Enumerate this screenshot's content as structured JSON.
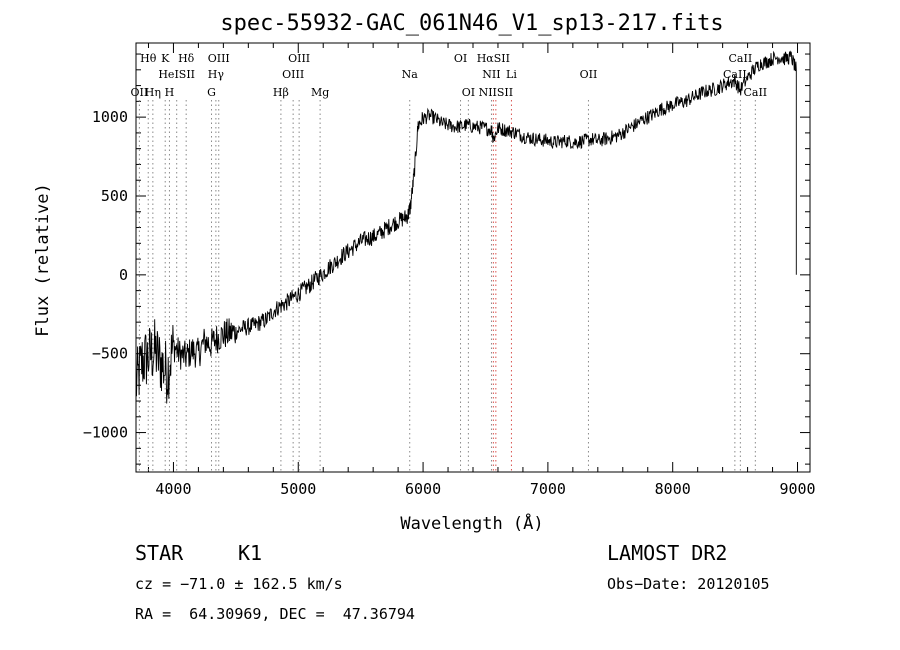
{
  "chart_data": {
    "type": "line",
    "title": "spec-55932-GAC_061N46_V1_sp13-217.fits",
    "xlabel": "Wavelength (Å)",
    "ylabel": "Flux (relative)",
    "xlim": [
      3700,
      9100
    ],
    "ylim": [
      -1250,
      1470
    ],
    "xticks": [
      4000,
      5000,
      6000,
      7000,
      8000,
      9000
    ],
    "yticks": [
      -1000,
      -500,
      0,
      500,
      1000
    ],
    "xtick_labels": [
      "4000",
      "5000",
      "6000",
      "7000",
      "8000",
      "9000"
    ],
    "ytick_labels": [
      "−1000",
      "−500",
      "0",
      "500",
      "1000"
    ],
    "series": [
      {
        "x": [
          3700,
          3750,
          3800,
          3850,
          3900,
          3950,
          4000,
          4050,
          4100,
          4150,
          4200,
          4250,
          4300,
          4350,
          4400,
          4450,
          4500,
          4550,
          4600,
          4650,
          4700,
          4750,
          4800,
          4850,
          4900,
          4950,
          5000,
          5050,
          5100,
          5150,
          5200,
          5250,
          5300,
          5350,
          5400,
          5450,
          5500,
          5550,
          5600,
          5650,
          5700,
          5750,
          5800,
          5850,
          5880,
          5900,
          5930,
          5960,
          6000,
          6050,
          6100,
          6150,
          6200,
          6250,
          6300,
          6350,
          6400,
          6450,
          6500,
          6550,
          6563,
          6600,
          6650,
          6700,
          6750,
          6800,
          6850,
          6900,
          6950,
          7000,
          7050,
          7100,
          7150,
          7200,
          7250,
          7300,
          7350,
          7400,
          7450,
          7500,
          7550,
          7600,
          7650,
          7700,
          7750,
          7800,
          7850,
          7900,
          7950,
          8000,
          8050,
          8100,
          8150,
          8200,
          8250,
          8300,
          8350,
          8400,
          8450,
          8500,
          8540,
          8600,
          8650,
          8700,
          8750,
          8800,
          8850,
          8900,
          8950,
          8990
        ],
        "y": [
          -700,
          -550,
          -520,
          -480,
          -560,
          -620,
          -450,
          -500,
          -520,
          -480,
          -500,
          -420,
          -440,
          -400,
          -380,
          -370,
          -360,
          -340,
          -330,
          -320,
          -300,
          -280,
          -230,
          -200,
          -180,
          -150,
          -120,
          -90,
          -60,
          -20,
          10,
          50,
          80,
          120,
          150,
          180,
          210,
          230,
          240,
          260,
          290,
          320,
          340,
          360,
          380,
          440,
          650,
          950,
          990,
          1010,
          990,
          960,
          950,
          940,
          940,
          950,
          940,
          935,
          930,
          920,
          860,
          930,
          920,
          910,
          900,
          880,
          870,
          860,
          855,
          850,
          840,
          845,
          850,
          840,
          845,
          850,
          860,
          850,
          860,
          870,
          880,
          900,
          930,
          950,
          980,
          1000,
          1020,
          1050,
          1060,
          1080,
          1090,
          1100,
          1120,
          1140,
          1160,
          1170,
          1180,
          1200,
          1220,
          1230,
          1170,
          1250,
          1300,
          1340,
          1350,
          1370,
          1380,
          1370,
          1380,
          1300
        ]
      }
    ],
    "lines": [
      {
        "label": "Hθ",
        "x": 3798,
        "row": 0,
        "color": "#8a8a8a"
      },
      {
        "label": "K",
        "x": 3934,
        "row": 0,
        "color": "#8a8a8a"
      },
      {
        "label": "Hδ",
        "x": 4102,
        "row": 0,
        "color": "#8a8a8a"
      },
      {
        "label": "OIII",
        "x": 4363,
        "row": 0,
        "color": "#8a8a8a"
      },
      {
        "label": "OIII",
        "x": 5007,
        "row": 0,
        "color": "#8a8a8a"
      },
      {
        "label": "OI",
        "x": 6300,
        "row": 0,
        "color": "#8a8a8a"
      },
      {
        "label": "HαSII",
        "x": 6563,
        "row": 0,
        "color": "#d9534f"
      },
      {
        "label": "CaII",
        "x": 8542,
        "row": 0,
        "color": "#8a8a8a"
      },
      {
        "label": "HeISII",
        "x": 4026,
        "row": 1,
        "color": "#8a8a8a"
      },
      {
        "label": "Hγ",
        "x": 4340,
        "row": 1,
        "color": "#8a8a8a"
      },
      {
        "label": "OIII",
        "x": 4959,
        "row": 1,
        "color": "#8a8a8a"
      },
      {
        "label": "Na",
        "x": 5893,
        "row": 1,
        "color": "#8a8a8a"
      },
      {
        "label": "NII",
        "x": 6548,
        "row": 1,
        "color": "#8a8a8a"
      },
      {
        "label": "Li",
        "x": 6708,
        "row": 1,
        "color": "#d9534f"
      },
      {
        "label": "OII",
        "x": 7325,
        "row": 1,
        "color": "#8a8a8a"
      },
      {
        "label": "CaII",
        "x": 8498,
        "row": 1,
        "color": "#8a8a8a"
      },
      {
        "label": "OII",
        "x": 3727,
        "row": 2,
        "color": "#8a8a8a"
      },
      {
        "label": "Hη",
        "x": 3835,
        "row": 2,
        "color": "#8a8a8a"
      },
      {
        "label": "H",
        "x": 3968,
        "row": 2,
        "color": "#8a8a8a"
      },
      {
        "label": "G",
        "x": 4305,
        "row": 2,
        "color": "#8a8a8a"
      },
      {
        "label": "Hβ",
        "x": 4861,
        "row": 2,
        "color": "#8a8a8a"
      },
      {
        "label": "Mg",
        "x": 5175,
        "row": 2,
        "color": "#8a8a8a"
      },
      {
        "label": "OI",
        "x": 6363,
        "row": 2,
        "color": "#8a8a8a"
      },
      {
        "label": "NIISII",
        "x": 6583,
        "row": 2,
        "color": "#d9534f"
      },
      {
        "label": "CaII",
        "x": 8662,
        "row": 2,
        "color": "#8a8a8a"
      }
    ]
  },
  "info": {
    "class_label": "STAR",
    "subclass_label": "K1",
    "survey": "LAMOST DR2",
    "cz": "cz = −71.0 ± 162.5 km/s",
    "obs_date": "Obs−Date: 20120105",
    "coords": "RA =  64.30969, DEC =  47.36794"
  }
}
